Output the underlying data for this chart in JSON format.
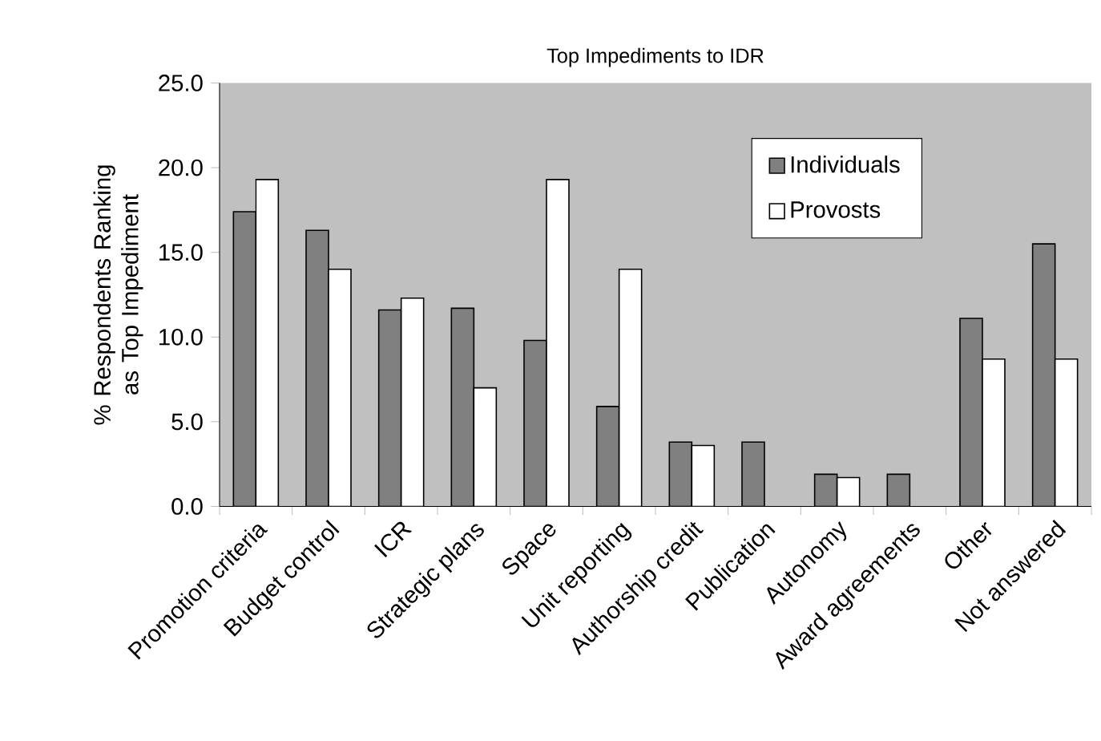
{
  "chart_data": {
    "type": "bar",
    "title": "Top Impediments to IDR",
    "ylabel": "% Respondents Ranking as Top Impediment",
    "categories": [
      "Promotion criteria",
      "Budget control",
      "ICR",
      "Strategic plans",
      "Space",
      "Unit reporting",
      "Authorship credit",
      "Publication",
      "Autonomy",
      "Award agreements",
      "Other",
      "Not answered"
    ],
    "series": [
      {
        "name": "Individuals",
        "color": "#808080",
        "values": [
          17.4,
          16.3,
          11.6,
          11.7,
          9.8,
          5.9,
          3.8,
          3.8,
          1.9,
          1.9,
          11.1,
          15.5
        ]
      },
      {
        "name": "Provosts",
        "color": "#ffffff",
        "values": [
          19.3,
          14.0,
          12.3,
          7.0,
          19.3,
          14.0,
          3.6,
          null,
          1.7,
          null,
          8.7,
          8.7
        ]
      }
    ],
    "ylim": [
      0,
      25
    ],
    "yticks": [
      {
        "value": 0,
        "label": "0.0"
      },
      {
        "value": 5,
        "label": "5.0"
      },
      {
        "value": 10,
        "label": "10.0"
      },
      {
        "value": 15,
        "label": "15.0"
      },
      {
        "value": 20,
        "label": "20.0"
      },
      {
        "value": 25,
        "label": "25.0"
      }
    ],
    "grid": false,
    "legend": "top right"
  }
}
